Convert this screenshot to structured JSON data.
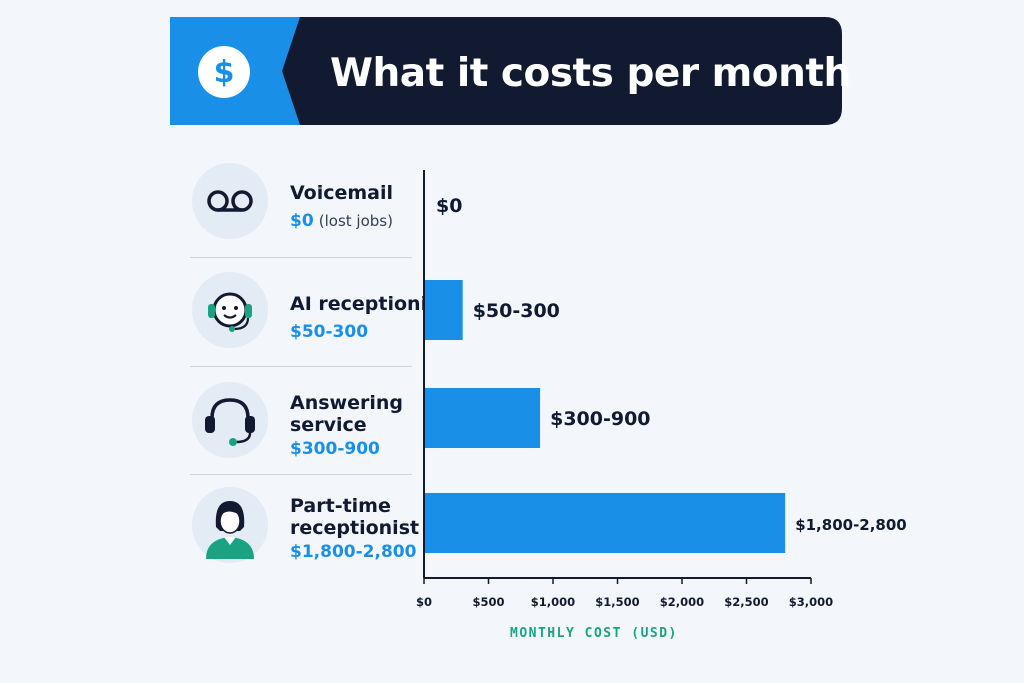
{
  "header": {
    "title": "What it costs per month",
    "icon": "dollar-icon",
    "icon_glyph": "$",
    "accent_color": "#1a8fe8",
    "dark_color": "#111a30"
  },
  "rows": [
    {
      "label_lines": [
        "Voicemail"
      ],
      "price": "$0",
      "note": "(lost jobs)",
      "icon": "voicemail-icon"
    },
    {
      "label_lines": [
        "AI receptionist"
      ],
      "price": "$50-300",
      "note": "",
      "icon": "ai-headset-face-icon"
    },
    {
      "label_lines": [
        "Answering",
        "service"
      ],
      "price": "$300-900",
      "note": "",
      "icon": "headset-icon"
    },
    {
      "label_lines": [
        "Part-time",
        "receptionist"
      ],
      "price": "$1,800-2,800",
      "note": "",
      "icon": "receptionist-person-icon"
    }
  ],
  "chart_data": {
    "type": "bar",
    "orientation": "horizontal",
    "categories": [
      "Voicemail",
      "AI receptionist",
      "Answering service",
      "Part-time receptionist"
    ],
    "values": [
      0,
      300,
      900,
      2800
    ],
    "ranges": [
      [
        0,
        0
      ],
      [
        50,
        300
      ],
      [
        300,
        900
      ],
      [
        1800,
        2800
      ]
    ],
    "data_labels": [
      "$0",
      "$50-300",
      "$300-900",
      "$1,800-2,800"
    ],
    "xlabel": "MONTHLY COST (USD)",
    "xlim": [
      0,
      3000
    ],
    "xticks": [
      0,
      500,
      1000,
      1500,
      2000,
      2500,
      3000
    ],
    "xtick_labels": [
      "$0",
      "$500",
      "$1,000",
      "$1,500",
      "$2,000",
      "$2,500",
      "$3,000"
    ],
    "bar_color": "#1a8fe8",
    "grid": false
  }
}
